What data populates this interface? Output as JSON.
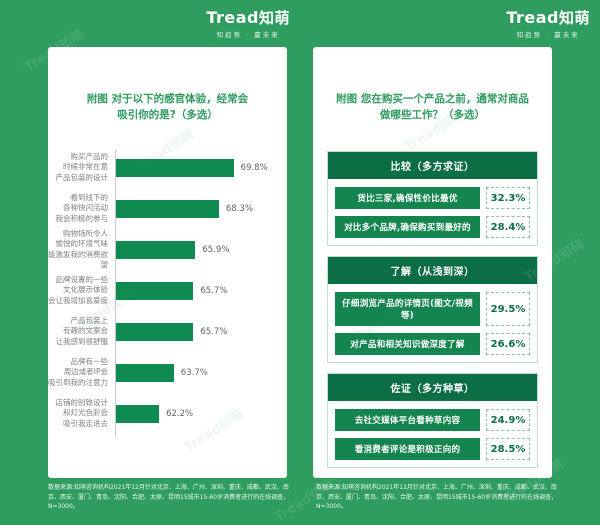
{
  "brand": {
    "logo_en": "Tread",
    "logo_cn": "知萌",
    "tagline": "知趋势 · 赢未来",
    "watermark": "Tread知萌"
  },
  "colors": {
    "background_green": "#2E9D5F",
    "bar_green": "#0F8A51",
    "section_header_green": "#0B6E45",
    "item_button_green": "#15854F",
    "title_green": "#2E9C5F",
    "percent_text_green": "#0B6E45"
  },
  "left_panel": {
    "title_lines": [
      "附图 对于以下的感官体验，经常会",
      "吸引你的是?（多选）"
    ],
    "footer": "数据来源:知萌咨询机构2021年12月针对北京、上海、广州、深圳、重庆、成都、武汉、南京、西安、厦门、青岛、沈阳、合肥、太原、昆明15城市15-60岁消费者进行的在线调查，N=3000。"
  },
  "right_panel": {
    "title_lines": [
      "附图 您在购买一个产品之前，通常对商品",
      "做哪些工作？（多选）"
    ],
    "footer": "数据来源:知萌咨询机构2021年12月针对北京、上海、广州、深圳、重庆、成都、武汉、南京、西安、厦门、青岛、沈阳、合肥、太原、昆明15城市15-60岁消费者进行的在线调查，N=3000。"
  },
  "chart_data": [
    {
      "type": "bar",
      "orientation": "horizontal",
      "title": "附图 对于以下的感官体验，经常会吸引你的是?（多选）",
      "unit": "%",
      "legend": "none",
      "grid": false,
      "categories": [
        "购买产品的时候非常在意产品包装的设计",
        "看到线下的各种快闪活动我会积极的参与",
        "购物场所令人愉悦的环境气味能激发我的消费欲望",
        "品牌设置的一些文化展示体验会让我增加喜爱度",
        "产品包装上有趣的文案会让我感到很舒服",
        "品牌有一些周边或者IP会吸引到我的注意力",
        "店铺的别致设计和灯光色彩会吸引我走进去"
      ],
      "values": [
        69.8,
        68.3,
        65.9,
        65.7,
        65.7,
        63.7,
        62.2
      ],
      "rows": [
        {
          "lines": [
            "购买产品的",
            "时候非常在意",
            "产品包装的设计"
          ],
          "display": "69.8%"
        },
        {
          "lines": [
            "看到线下的",
            "各种快闪活动",
            "我会积极的参与"
          ],
          "display": "68.3%"
        },
        {
          "lines": [
            "购物场所令人",
            "愉悦的环境气味",
            "能激发我的消费欲望"
          ],
          "display": "65.9%"
        },
        {
          "lines": [
            "品牌设置的一些",
            "文化展示体验",
            "会让我增加喜爱度"
          ],
          "display": "65.7%"
        },
        {
          "lines": [
            "产品包装上",
            "有趣的文案会",
            "让我感到很舒服"
          ],
          "display": "65.7%"
        },
        {
          "lines": [
            "品牌有一些",
            "周边或者IP会",
            "吸引到我的注意力"
          ],
          "display": "63.7%"
        },
        {
          "lines": [
            "店铺的别致设计",
            "和灯光色彩会",
            "吸引我走进去"
          ],
          "display": "62.2%"
        }
      ]
    },
    {
      "type": "table",
      "title": "附图 您在购买一个产品之前，通常对商品做哪些工作？（多选）",
      "unit": "%",
      "sections": [
        {
          "header": "比较（多方求证）",
          "items": [
            {
              "label": "货比三家,确保性价比最优",
              "value": "32.3%"
            },
            {
              "label": "对比多个品牌,确保购买到最好的",
              "value": "28.4%"
            }
          ]
        },
        {
          "header": "了解（从浅到深）",
          "items": [
            {
              "label": "仔细浏览产品的详情页(图文/视频等)",
              "value": "29.5%"
            },
            {
              "label": "对产品和相关知识做深度了解",
              "value": "26.6%"
            }
          ]
        },
        {
          "header": "佐证（多方种草）",
          "items": [
            {
              "label": "去社交媒体平台看种草内容",
              "value": "24.9%"
            },
            {
              "label": "看消费者评论是积极正向的",
              "value": "28.5%"
            }
          ]
        }
      ]
    }
  ]
}
